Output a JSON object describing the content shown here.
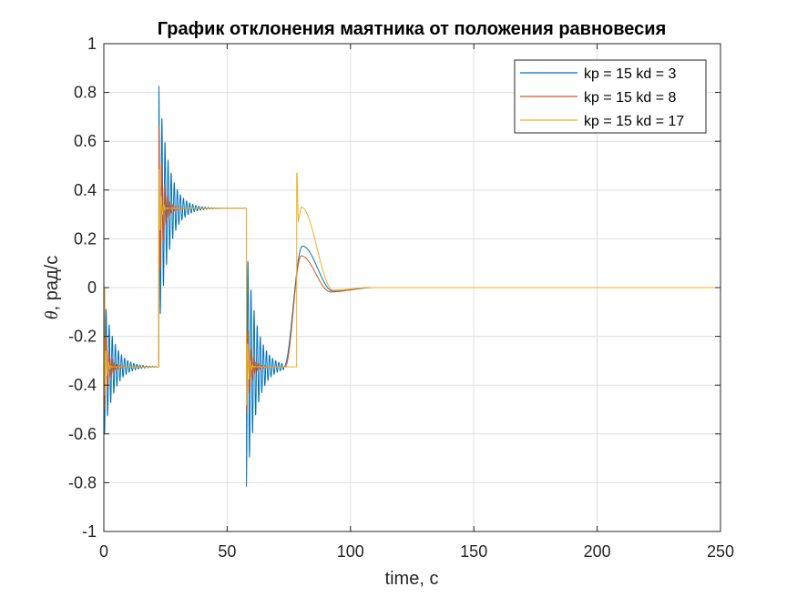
{
  "chart_data": {
    "type": "line",
    "title": "График отклонения маятника от положения равновесия",
    "xlabel": "time, c",
    "ylabel_symbol": "θ",
    "ylabel_rest": ", рад/с",
    "xlim": [
      0,
      250
    ],
    "ylim": [
      -1,
      1
    ],
    "xticks": [
      0,
      50,
      100,
      150,
      200,
      250
    ],
    "xtick_labels": [
      "0",
      "50",
      "100",
      "150",
      "200",
      "250"
    ],
    "yticks": [
      -1,
      -0.8,
      -0.6,
      -0.4,
      -0.2,
      0,
      0.2,
      0.4,
      0.6,
      0.8,
      1
    ],
    "ytick_labels": [
      "-1",
      "-0.8",
      "-0.6",
      "-0.4",
      "-0.2",
      "0",
      "0.2",
      "0.4",
      "0.6",
      "0.8",
      "1"
    ],
    "grid": true,
    "legend_position": "top-right",
    "series": [
      {
        "name": "kp = 15 kd = 3",
        "color": "#0072BD",
        "steps": [
          [
            0,
            0
          ],
          [
            0.3,
            -0.325
          ],
          [
            22.3,
            0.325
          ],
          [
            57.8,
            -0.325
          ],
          [
            75,
            0
          ]
        ],
        "kick_amplitudes": [
          -0.275,
          0.505,
          -0.505
        ],
        "decay_time": 4,
        "osc_period": 1.25,
        "transient": {
          "start": 73,
          "peak_time": 80.5,
          "peak": 0.17,
          "undershoot": -0.015,
          "undershoot_time": 93,
          "settle": 110
        }
      },
      {
        "name": "kp = 15 kd = 8",
        "color": "#D95319",
        "steps": [
          [
            0,
            0
          ],
          [
            0.3,
            -0.325
          ],
          [
            22.3,
            0.325
          ],
          [
            57.8,
            -0.325
          ],
          [
            75,
            0
          ]
        ],
        "kick_amplitudes": [
          -0.175,
          0.345,
          -0.2
        ],
        "decay_time": 1.8,
        "osc_period": 1.15,
        "transient": {
          "start": 73.5,
          "peak_time": 80,
          "peak": 0.13,
          "undershoot": -0.018,
          "undershoot_time": 92,
          "settle": 108
        }
      },
      {
        "name": "kp = 15 kd = 17",
        "color": "#EDB120",
        "steps": [
          [
            0,
            0
          ],
          [
            0.3,
            -0.325
          ],
          [
            22.3,
            0.325
          ],
          [
            57.8,
            -0.325
          ],
          [
            78.2,
            0
          ]
        ],
        "kick_amplitudes": [
          -0.12,
          0.165,
          -0.17
        ],
        "decay_time": 0.8,
        "osc_period": 1.0,
        "transient": {
          "start": 78.2,
          "peak_time": 78.2,
          "peak": 0.47,
          "dip": 0.27,
          "dip_time": 78.8,
          "bump": 0.33,
          "bump_time": 80,
          "undershoot": -0.01,
          "undershoot_time": 93,
          "settle": 108
        }
      }
    ]
  }
}
